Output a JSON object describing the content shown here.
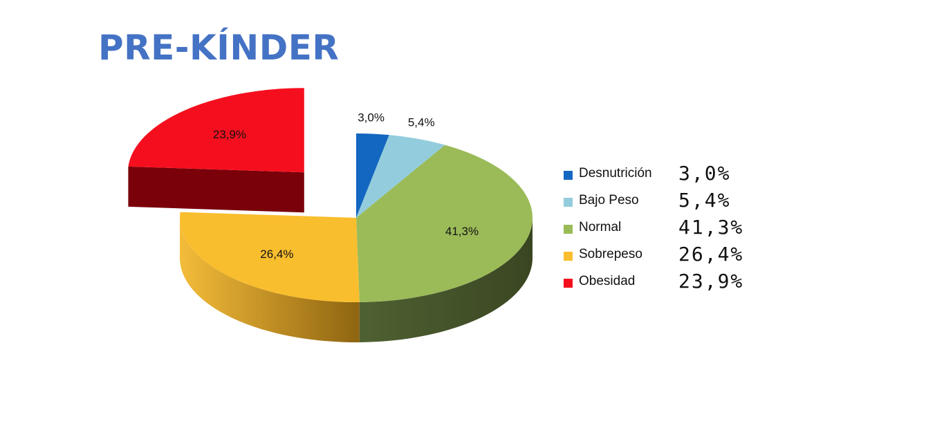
{
  "title": "PRE-KÍNDER",
  "colors": {
    "title": "#4472C4",
    "Desnutrición": "#1467C0",
    "Bajo Peso": "#93CDDD",
    "Normal": "#9BBB59",
    "Sobrepeso": "#F9BE2E",
    "Obesidad": "#F50F1E"
  },
  "chart_data": {
    "type": "pie",
    "style": "3d-exploded",
    "title": "PRE-KÍNDER",
    "categories": [
      "Desnutrición",
      "Bajo Peso",
      "Normal",
      "Sobrepeso",
      "Obesidad"
    ],
    "values": [
      3.0,
      5.4,
      41.3,
      26.4,
      23.9
    ],
    "labels": [
      "3,0%",
      "5,4%",
      "41,3%",
      "26,4%",
      "23,9%"
    ],
    "exploded": [
      "Obesidad"
    ],
    "legend_position": "right"
  },
  "legend": [
    {
      "label": "Desnutrición",
      "value": "3,0%"
    },
    {
      "label": "Bajo Peso",
      "value": "5,4%"
    },
    {
      "label": "Normal",
      "value": "41,3%"
    },
    {
      "label": "Sobrepeso",
      "value": "26,4%"
    },
    {
      "label": "Obesidad",
      "value": "23,9%"
    }
  ]
}
